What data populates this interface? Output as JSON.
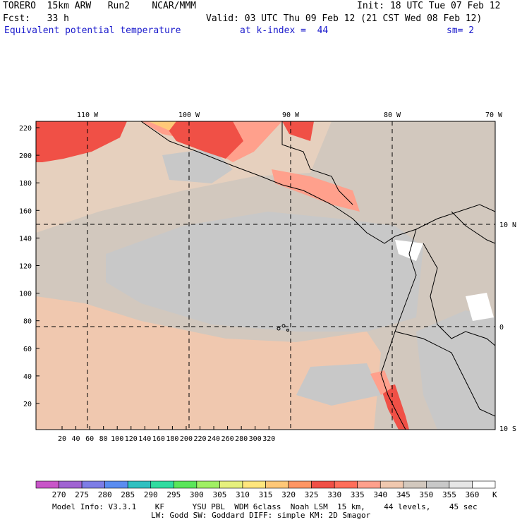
{
  "header": {
    "model": "TORERO",
    "resolution": "15km ARW",
    "run": "Run2",
    "org": "NCAR/MMM",
    "init": "Init: 18 UTC Tue 07 Feb 12",
    "fcst_label": "Fcst:",
    "fcst_value": "33 h",
    "valid": "Valid: 03 UTC Thu 09 Feb 12 (21 CST Wed 08 Feb 12)",
    "field": "Equivalent potential temperature",
    "level": "at k-index =  44",
    "smoothing": "sm= 2"
  },
  "map": {
    "lon_labels": [
      "110 W",
      "100 W",
      "90 W",
      "80 W",
      "70 W"
    ],
    "lat_labels": [
      "10 N",
      "0",
      "10 S"
    ],
    "grid_y_ticks": [
      "220",
      "200",
      "180",
      "160",
      "140",
      "120",
      "100",
      "80",
      "60",
      "40",
      "20"
    ],
    "grid_x_ticks": [
      "20",
      "40",
      "60",
      "80",
      "100",
      "120",
      "140",
      "160",
      "180",
      "200",
      "220",
      "240",
      "260",
      "280",
      "300",
      "320"
    ]
  },
  "colorbar": {
    "unit": "K",
    "labels": [
      "270",
      "275",
      "280",
      "285",
      "290",
      "295",
      "300",
      "305",
      "310",
      "315",
      "320",
      "325",
      "330",
      "335",
      "340",
      "345",
      "350",
      "355",
      "360"
    ],
    "colors": [
      "#c855c8",
      "#a064d2",
      "#7d7de6",
      "#5a8cf0",
      "#30c0c0",
      "#30dca0",
      "#5ae65a",
      "#a0f064",
      "#e6f07d",
      "#ffe67d",
      "#ffc878",
      "#ff9664",
      "#f05046",
      "#ff6e5a",
      "#ffa08c",
      "#f0c8af",
      "#d2c8be",
      "#c8c8c8",
      "#e6e6e6",
      "#ffffff"
    ]
  },
  "footer": {
    "line1": "Model Info: V3.3.1    KF      YSU PBL  WDM 6class  Noah LSM  15 km,    44 levels,    45 sec",
    "line2": "LW: Godd SW: Goddard DIFF: simple KM: 2D Smagor"
  }
}
